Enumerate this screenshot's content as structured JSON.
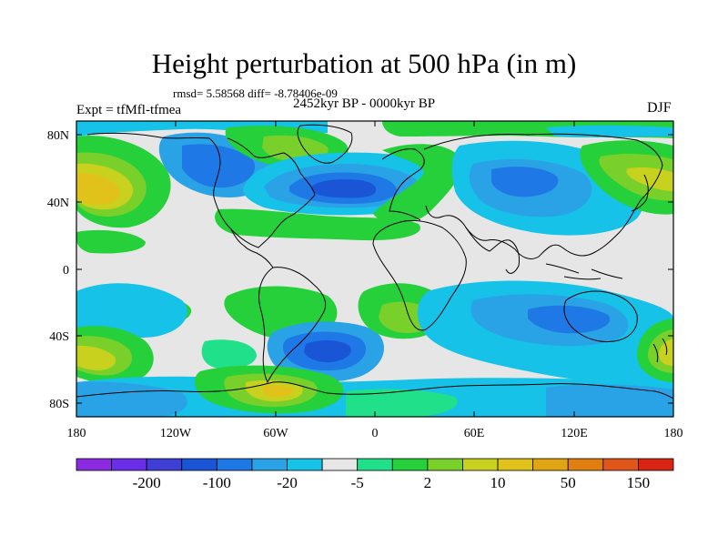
{
  "header": {
    "title": "Height perturbation at 500 hPa (in m)",
    "stats": "rmsd= 5.58568 diff= -8.78406e-09",
    "period": "2452kyr BP - 0000kyr BP",
    "experiment": "Expt = tfMfl-tfmea",
    "season": "DJF"
  },
  "axes": {
    "lat_ticks": [
      "80N",
      "40N",
      "0",
      "40S",
      "80S"
    ],
    "lon_ticks": [
      "180",
      "120W",
      "60W",
      "0",
      "60E",
      "120E",
      "180"
    ]
  },
  "colorbar": {
    "colors": [
      "#8a2be2",
      "#6a2ee8",
      "#3f3fd8",
      "#1a55d6",
      "#1e78e6",
      "#2aa3e6",
      "#16c2e8",
      "#e6e6e6",
      "#20e08a",
      "#25d03a",
      "#7ad02a",
      "#c8d21e",
      "#e0c21a",
      "#e0a512",
      "#e07f10",
      "#e0551a",
      "#d82412"
    ],
    "labels": [
      "-200",
      "-100",
      "-20",
      "-5",
      "2",
      "10",
      "50",
      "150"
    ]
  },
  "palette": {
    "ocean_gray": "#e6e6e6",
    "coast": "#000000",
    "c_m10": "#1a55d6",
    "c_m5": "#1e78e6",
    "c_m2": "#2aa3e6",
    "c_m1": "#16c2e8",
    "c_p1": "#20e08a",
    "c_p2": "#25d03a",
    "c_p5": "#7ad02a",
    "c_p10": "#c8d21e",
    "c_p20": "#e0c21a",
    "c_p30": "#e0a512"
  }
}
